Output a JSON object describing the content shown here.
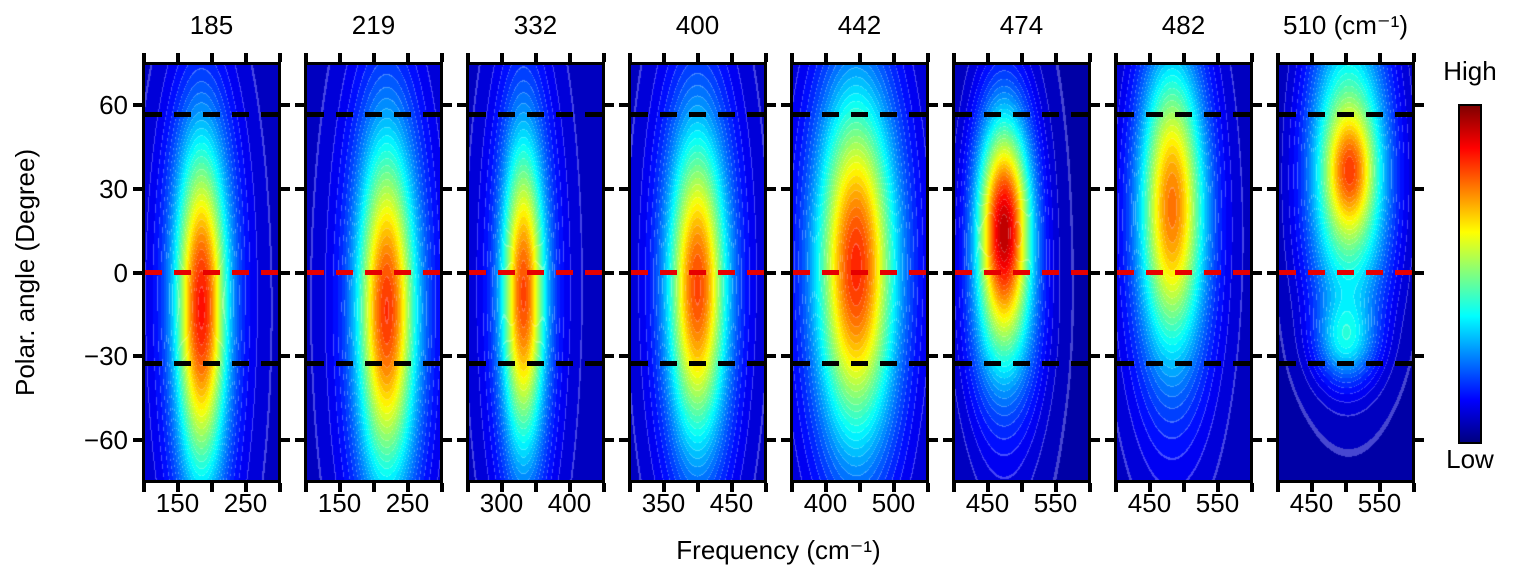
{
  "chart_data": {
    "type": "heatmap",
    "description": "Polarization-angle-resolved Raman contour maps for eight phonon modes",
    "xlabel": "Frequency (cm⁻¹)",
    "ylabel": "Polar. angle (Degree)",
    "y_range": [
      -75,
      75
    ],
    "y_ticks": [
      60,
      30,
      0,
      -30,
      -60
    ],
    "contour_levels": 40,
    "colorbar": {
      "high": "High",
      "low": "Low",
      "colormap": "jet",
      "stops": [
        [
          0,
          "#000080"
        ],
        [
          0.125,
          "#0000ff"
        ],
        [
          0.375,
          "#00ffff"
        ],
        [
          0.625,
          "#ffff00"
        ],
        [
          0.875,
          "#ff0000"
        ],
        [
          1,
          "#800000"
        ]
      ]
    },
    "reference_lines": [
      {
        "angle": 57,
        "color": "#000000",
        "style": "dashed"
      },
      {
        "angle": 0,
        "color": "#e60000",
        "style": "dashed"
      },
      {
        "angle": -33,
        "color": "#000000",
        "style": "dashed"
      }
    ],
    "panels": [
      {
        "title": "185",
        "mode_frequency": 185,
        "x_range": [
          100,
          300
        ],
        "x_ticks": [
          [
            100,
            ""
          ],
          [
            150,
            "150"
          ],
          [
            200,
            ""
          ],
          [
            250,
            "250"
          ],
          [
            300,
            ""
          ]
        ],
        "peak": {
          "frequency": 185,
          "angle": -19,
          "relative_intensity": 0.85
        },
        "field": {
          "base": 0.05,
          "gaussians": [
            [
              185,
              -19,
              26,
              40,
              0.6
            ],
            [
              185,
              15,
              32,
              34,
              0.14
            ],
            [
              185,
              -15,
              60,
              70,
              0.12
            ]
          ]
        }
      },
      {
        "title": "219",
        "mode_frequency": 219,
        "x_range": [
          100,
          300
        ],
        "x_ticks": [
          [
            100,
            ""
          ],
          [
            150,
            "150"
          ],
          [
            200,
            ""
          ],
          [
            250,
            "250"
          ],
          [
            300,
            ""
          ]
        ],
        "peak": {
          "frequency": 219,
          "angle": -14,
          "relative_intensity": 0.83
        },
        "field": {
          "base": 0.05,
          "gaussians": [
            [
              220,
              -14,
              30,
              42,
              0.64
            ],
            [
              220,
              -10,
              62,
              70,
              0.14
            ]
          ]
        }
      },
      {
        "title": "332",
        "mode_frequency": 332,
        "x_range": [
          250,
          450
        ],
        "x_ticks": [
          [
            250,
            ""
          ],
          [
            300,
            "300"
          ],
          [
            350,
            ""
          ],
          [
            400,
            "400"
          ],
          [
            450,
            ""
          ]
        ],
        "peak": {
          "frequency": 332,
          "angle": -8,
          "relative_intensity": 0.81
        },
        "field": {
          "base": 0.05,
          "gaussians": [
            [
              332,
              -8,
              22,
              38,
              0.62
            ],
            [
              332,
              -5,
              48,
              65,
              0.14
            ]
          ]
        }
      },
      {
        "title": "400",
        "mode_frequency": 400,
        "x_range": [
          300,
          500
        ],
        "x_ticks": [
          [
            300,
            ""
          ],
          [
            350,
            "350"
          ],
          [
            400,
            ""
          ],
          [
            450,
            "450"
          ],
          [
            500,
            ""
          ]
        ],
        "peak": {
          "frequency": 400,
          "angle": -6,
          "relative_intensity": 0.81
        },
        "field": {
          "base": 0.05,
          "gaussians": [
            [
              400,
              -6,
              30,
              38,
              0.62
            ],
            [
              400,
              0,
              58,
              65,
              0.14
            ]
          ]
        }
      },
      {
        "title": "442",
        "mode_frequency": 442,
        "x_range": [
          350,
          550
        ],
        "x_ticks": [
          [
            350,
            ""
          ],
          [
            400,
            "400"
          ],
          [
            450,
            ""
          ],
          [
            500,
            "500"
          ],
          [
            550,
            ""
          ]
        ],
        "peak": {
          "frequency": 445,
          "angle": 2,
          "relative_intensity": 0.84
        },
        "field": {
          "base": 0.05,
          "gaussians": [
            [
              445,
              2,
              40,
              42,
              0.66
            ],
            [
              445,
              2,
              72,
              68,
              0.13
            ]
          ]
        }
      },
      {
        "title": "474",
        "mode_frequency": 474,
        "x_range": [
          400,
          600
        ],
        "x_ticks": [
          [
            400,
            ""
          ],
          [
            450,
            "450"
          ],
          [
            500,
            ""
          ],
          [
            550,
            "550"
          ],
          [
            600,
            ""
          ]
        ],
        "peak": {
          "frequency": 474,
          "angle": 17,
          "relative_intensity": 0.93
        },
        "field": {
          "base": 0.04,
          "gaussians": [
            [
              474,
              17,
              27,
              26,
              0.7
            ],
            [
              474,
              2,
              42,
              48,
              0.2
            ],
            [
              474,
              -22,
              36,
              20,
              0.1
            ]
          ]
        }
      },
      {
        "title": "482",
        "mode_frequency": 482,
        "x_range": [
          400,
          600
        ],
        "x_ticks": [
          [
            400,
            ""
          ],
          [
            450,
            "450"
          ],
          [
            500,
            ""
          ],
          [
            550,
            "550"
          ],
          [
            600,
            ""
          ]
        ],
        "peak": {
          "frequency": 482,
          "angle": 25,
          "relative_intensity": 0.77
        },
        "field": {
          "base": 0.05,
          "gaussians": [
            [
              483,
              25,
              33,
              36,
              0.58
            ],
            [
              483,
              8,
              56,
              55,
              0.14
            ]
          ]
        }
      },
      {
        "title": "510 (cm⁻¹)",
        "mode_frequency": 510,
        "x_range": [
          400,
          600
        ],
        "x_ticks": [
          [
            400,
            ""
          ],
          [
            450,
            "450"
          ],
          [
            500,
            ""
          ],
          [
            550,
            "550"
          ],
          [
            600,
            ""
          ]
        ],
        "peak": {
          "frequency": 507,
          "angle": 37,
          "relative_intensity": 0.75
        },
        "field": {
          "base": 0.04,
          "gaussians": [
            [
              507,
              37,
              24,
              14,
              0.25
            ],
            [
              505,
              26,
              44,
              34,
              0.4
            ],
            [
              505,
              62,
              42,
              34,
              0.2
            ],
            [
              500,
              -25,
              30,
              10,
              0.22
            ]
          ]
        }
      }
    ]
  },
  "styling": {
    "background": "#ffffff",
    "axis_color": "#000000",
    "text_color": "#000000"
  }
}
